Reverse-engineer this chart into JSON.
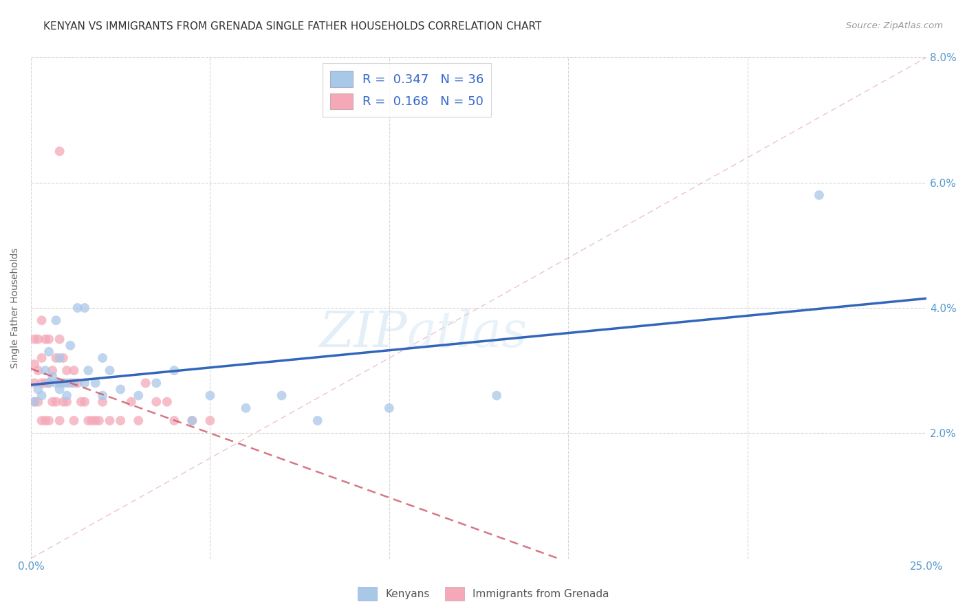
{
  "title": "KENYAN VS IMMIGRANTS FROM GRENADA SINGLE FATHER HOUSEHOLDS CORRELATION CHART",
  "source": "Source: ZipAtlas.com",
  "ylabel": "Single Father Households",
  "xlim": [
    0,
    0.25
  ],
  "ylim": [
    0,
    0.08
  ],
  "xticks": [
    0.0,
    0.05,
    0.1,
    0.15,
    0.2,
    0.25
  ],
  "yticks": [
    0.0,
    0.02,
    0.04,
    0.06,
    0.08
  ],
  "xtick_labels": [
    "0.0%",
    "",
    "",
    "",
    "",
    "25.0%"
  ],
  "right_ytick_labels": [
    "",
    "2.0%",
    "4.0%",
    "6.0%",
    "8.0%"
  ],
  "blue_R": "0.347",
  "blue_N": "36",
  "pink_R": "0.168",
  "pink_N": "50",
  "blue_color": "#a8c8e8",
  "pink_color": "#f4a8b8",
  "blue_line_color": "#3366bb",
  "pink_line_color": "#cc5566",
  "watermark_zip": "ZIP",
  "watermark_atlas": "atlas",
  "blue_points_x": [
    0.001,
    0.002,
    0.003,
    0.004,
    0.005,
    0.005,
    0.006,
    0.007,
    0.007,
    0.008,
    0.008,
    0.009,
    0.01,
    0.01,
    0.011,
    0.012,
    0.013,
    0.015,
    0.015,
    0.016,
    0.018,
    0.02,
    0.02,
    0.022,
    0.025,
    0.03,
    0.035,
    0.04,
    0.045,
    0.05,
    0.06,
    0.07,
    0.08,
    0.1,
    0.13,
    0.22
  ],
  "blue_points_y": [
    0.025,
    0.027,
    0.026,
    0.03,
    0.028,
    0.033,
    0.029,
    0.028,
    0.038,
    0.027,
    0.032,
    0.028,
    0.028,
    0.026,
    0.034,
    0.028,
    0.04,
    0.04,
    0.028,
    0.03,
    0.028,
    0.026,
    0.032,
    0.03,
    0.027,
    0.026,
    0.028,
    0.03,
    0.022,
    0.026,
    0.024,
    0.026,
    0.022,
    0.024,
    0.026,
    0.058
  ],
  "pink_points_x": [
    0.001,
    0.001,
    0.001,
    0.001,
    0.002,
    0.002,
    0.002,
    0.003,
    0.003,
    0.003,
    0.003,
    0.004,
    0.004,
    0.004,
    0.005,
    0.005,
    0.005,
    0.006,
    0.006,
    0.007,
    0.007,
    0.008,
    0.008,
    0.008,
    0.009,
    0.009,
    0.01,
    0.01,
    0.011,
    0.012,
    0.012,
    0.013,
    0.014,
    0.015,
    0.016,
    0.017,
    0.018,
    0.019,
    0.02,
    0.022,
    0.025,
    0.028,
    0.03,
    0.032,
    0.035,
    0.038,
    0.04,
    0.045,
    0.05,
    0.008
  ],
  "pink_points_y": [
    0.025,
    0.028,
    0.031,
    0.035,
    0.025,
    0.03,
    0.035,
    0.022,
    0.028,
    0.032,
    0.038,
    0.022,
    0.028,
    0.035,
    0.022,
    0.028,
    0.035,
    0.025,
    0.03,
    0.025,
    0.032,
    0.022,
    0.028,
    0.035,
    0.025,
    0.032,
    0.025,
    0.03,
    0.028,
    0.022,
    0.03,
    0.028,
    0.025,
    0.025,
    0.022,
    0.022,
    0.022,
    0.022,
    0.025,
    0.022,
    0.022,
    0.025,
    0.022,
    0.028,
    0.025,
    0.025,
    0.022,
    0.022,
    0.022,
    0.065
  ]
}
